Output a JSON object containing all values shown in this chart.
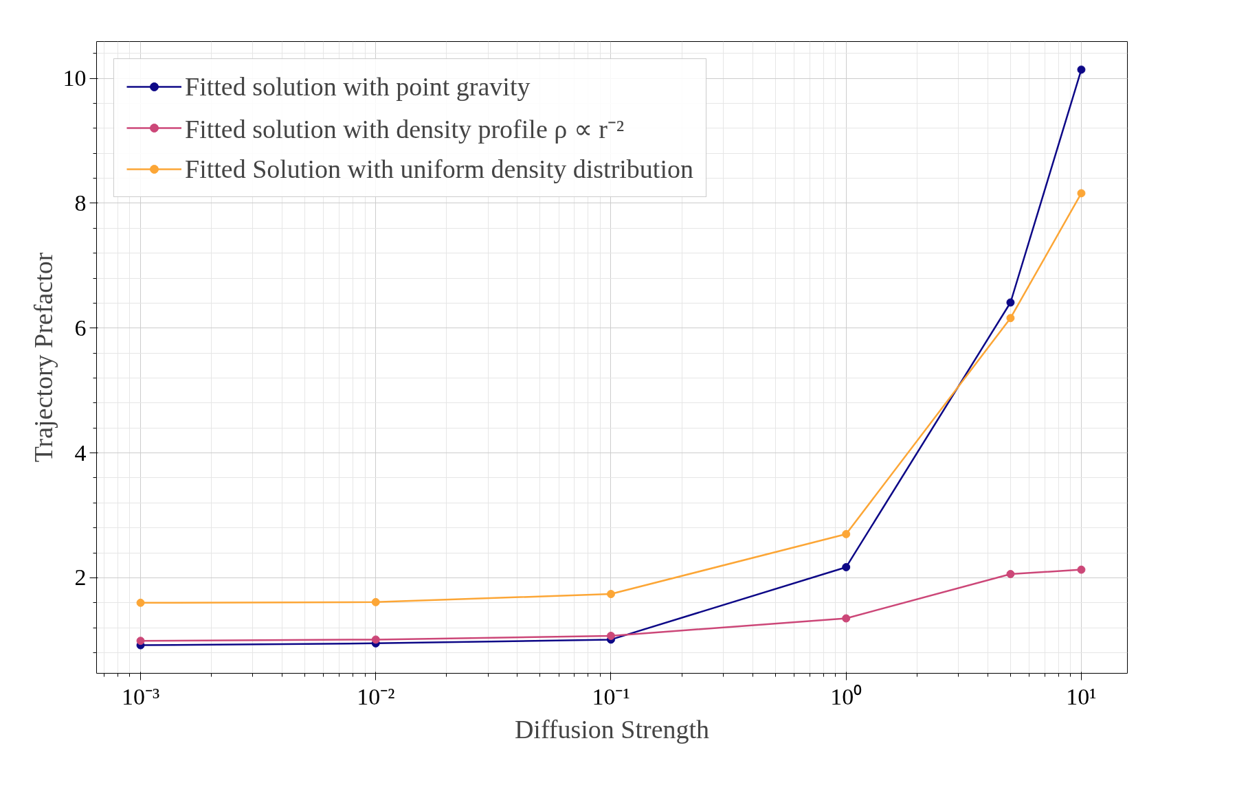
{
  "chart_data": {
    "type": "line",
    "xlabel": "Diffusion Strength",
    "ylabel": "Trajectory Prefactor",
    "x": [
      0.001,
      0.01,
      0.1,
      1,
      5,
      10
    ],
    "series": [
      {
        "name": "Fitted solution with point gravity",
        "color": "#0d0887",
        "values": [
          0.92,
          0.95,
          1.01,
          2.17,
          6.41,
          10.14
        ]
      },
      {
        "name": "Fitted solution with density profile ρ ∝ r⁻²",
        "color": "#cc4778",
        "values": [
          0.99,
          1.01,
          1.07,
          1.35,
          2.06,
          2.13
        ]
      },
      {
        "name": "Fitted Solution with uniform density distribution",
        "color": "#fca636",
        "values": [
          1.6,
          1.61,
          1.74,
          2.7,
          6.16,
          8.16
        ]
      }
    ],
    "log": "x",
    "xlim": [
      0.00065,
      15.7
    ],
    "ylim": [
      0.47,
      10.59
    ],
    "xticks": [
      {
        "value": 0.001,
        "label": "10⁻³"
      },
      {
        "value": 0.01,
        "label": "10⁻²"
      },
      {
        "value": 0.1,
        "label": "10⁻¹"
      },
      {
        "value": 1,
        "label": "10⁰"
      },
      {
        "value": 10,
        "label": "10¹"
      }
    ],
    "yticks": [
      2,
      4,
      6,
      8,
      10
    ],
    "grid": true,
    "legend": "top left",
    "marker": "circle",
    "line_style": "solid"
  }
}
